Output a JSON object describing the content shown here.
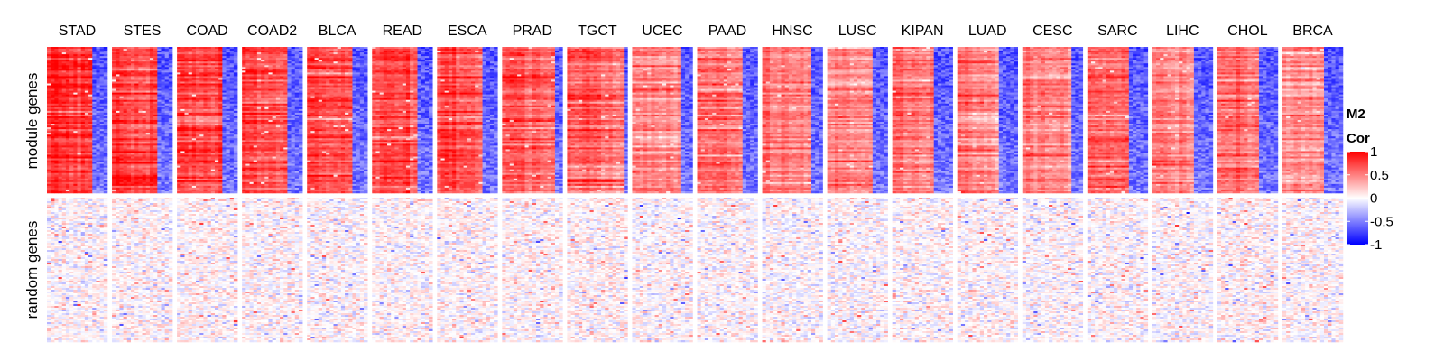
{
  "chart_data": {
    "type": "heatmap",
    "columns": [
      "STAD",
      "STES",
      "COAD",
      "COAD2",
      "BLCA",
      "READ",
      "ESCA",
      "PRAD",
      "TGCT",
      "UCEC",
      "PAAD",
      "HNSC",
      "LUSC",
      "KIPAN",
      "LUAD",
      "CESC",
      "SARC",
      "LIHC",
      "CHOL",
      "BRCA"
    ],
    "row_groups": [
      "module genes",
      "random genes"
    ],
    "legend": {
      "title_line1": "M2",
      "title_line2": "Cor",
      "ticks": [
        "1",
        "0.5",
        "0",
        "-0.5",
        "-1"
      ],
      "tick_values": [
        1,
        0.5,
        0,
        -0.5,
        -1
      ],
      "range": [
        -1,
        1
      ],
      "placement": "right",
      "colors": {
        "high": "#ff0000",
        "mid": "#ffffff",
        "low": "#0000ff"
      }
    },
    "approx_mean_correlation": {
      "module genes": {
        "STAD": 0.68,
        "STES": 0.66,
        "COAD": 0.66,
        "COAD2": 0.63,
        "BLCA": 0.62,
        "READ": 0.63,
        "ESCA": 0.6,
        "PRAD": 0.58,
        "TGCT": 0.55,
        "UCEC": 0.42,
        "PAAD": 0.5,
        "HNSC": 0.42,
        "LUSC": 0.38,
        "KIPAN": 0.45,
        "LUAD": 0.4,
        "CESC": 0.42,
        "SARC": 0.55,
        "LIHC": 0.4,
        "CHOL": 0.45,
        "BRCA": 0.38
      },
      "random genes": {
        "STAD": 0.02,
        "STES": 0.02,
        "COAD": 0.03,
        "COAD2": 0.02,
        "BLCA": 0.01,
        "READ": 0.02,
        "ESCA": 0.03,
        "PRAD": 0.02,
        "TGCT": 0.04,
        "UCEC": 0.01,
        "PAAD": 0.02,
        "HNSC": 0.01,
        "LUSC": 0.01,
        "KIPAN": 0.02,
        "LUAD": 0.02,
        "CESC": 0.01,
        "SARC": 0.02,
        "LIHC": 0.01,
        "CHOL": 0.04,
        "BRCA": 0.02
      }
    },
    "blue_right_block": {
      "STAD": 0.25,
      "STES": 0.25,
      "COAD": 0.22,
      "COAD2": 0.24,
      "BLCA": 0.26,
      "READ": 0.25,
      "ESCA": 0.22,
      "PRAD": 0.12,
      "TGCT": 0.06,
      "UCEC": 0.2,
      "PAAD": 0.22,
      "HNSC": 0.2,
      "LUSC": 0.25,
      "KIPAN": 0.3,
      "LUAD": 0.3,
      "CESC": 0.2,
      "SARC": 0.3,
      "LIHC": 0.3,
      "CHOL": 0.3,
      "BRCA": 0.3
    },
    "grid": false
  }
}
